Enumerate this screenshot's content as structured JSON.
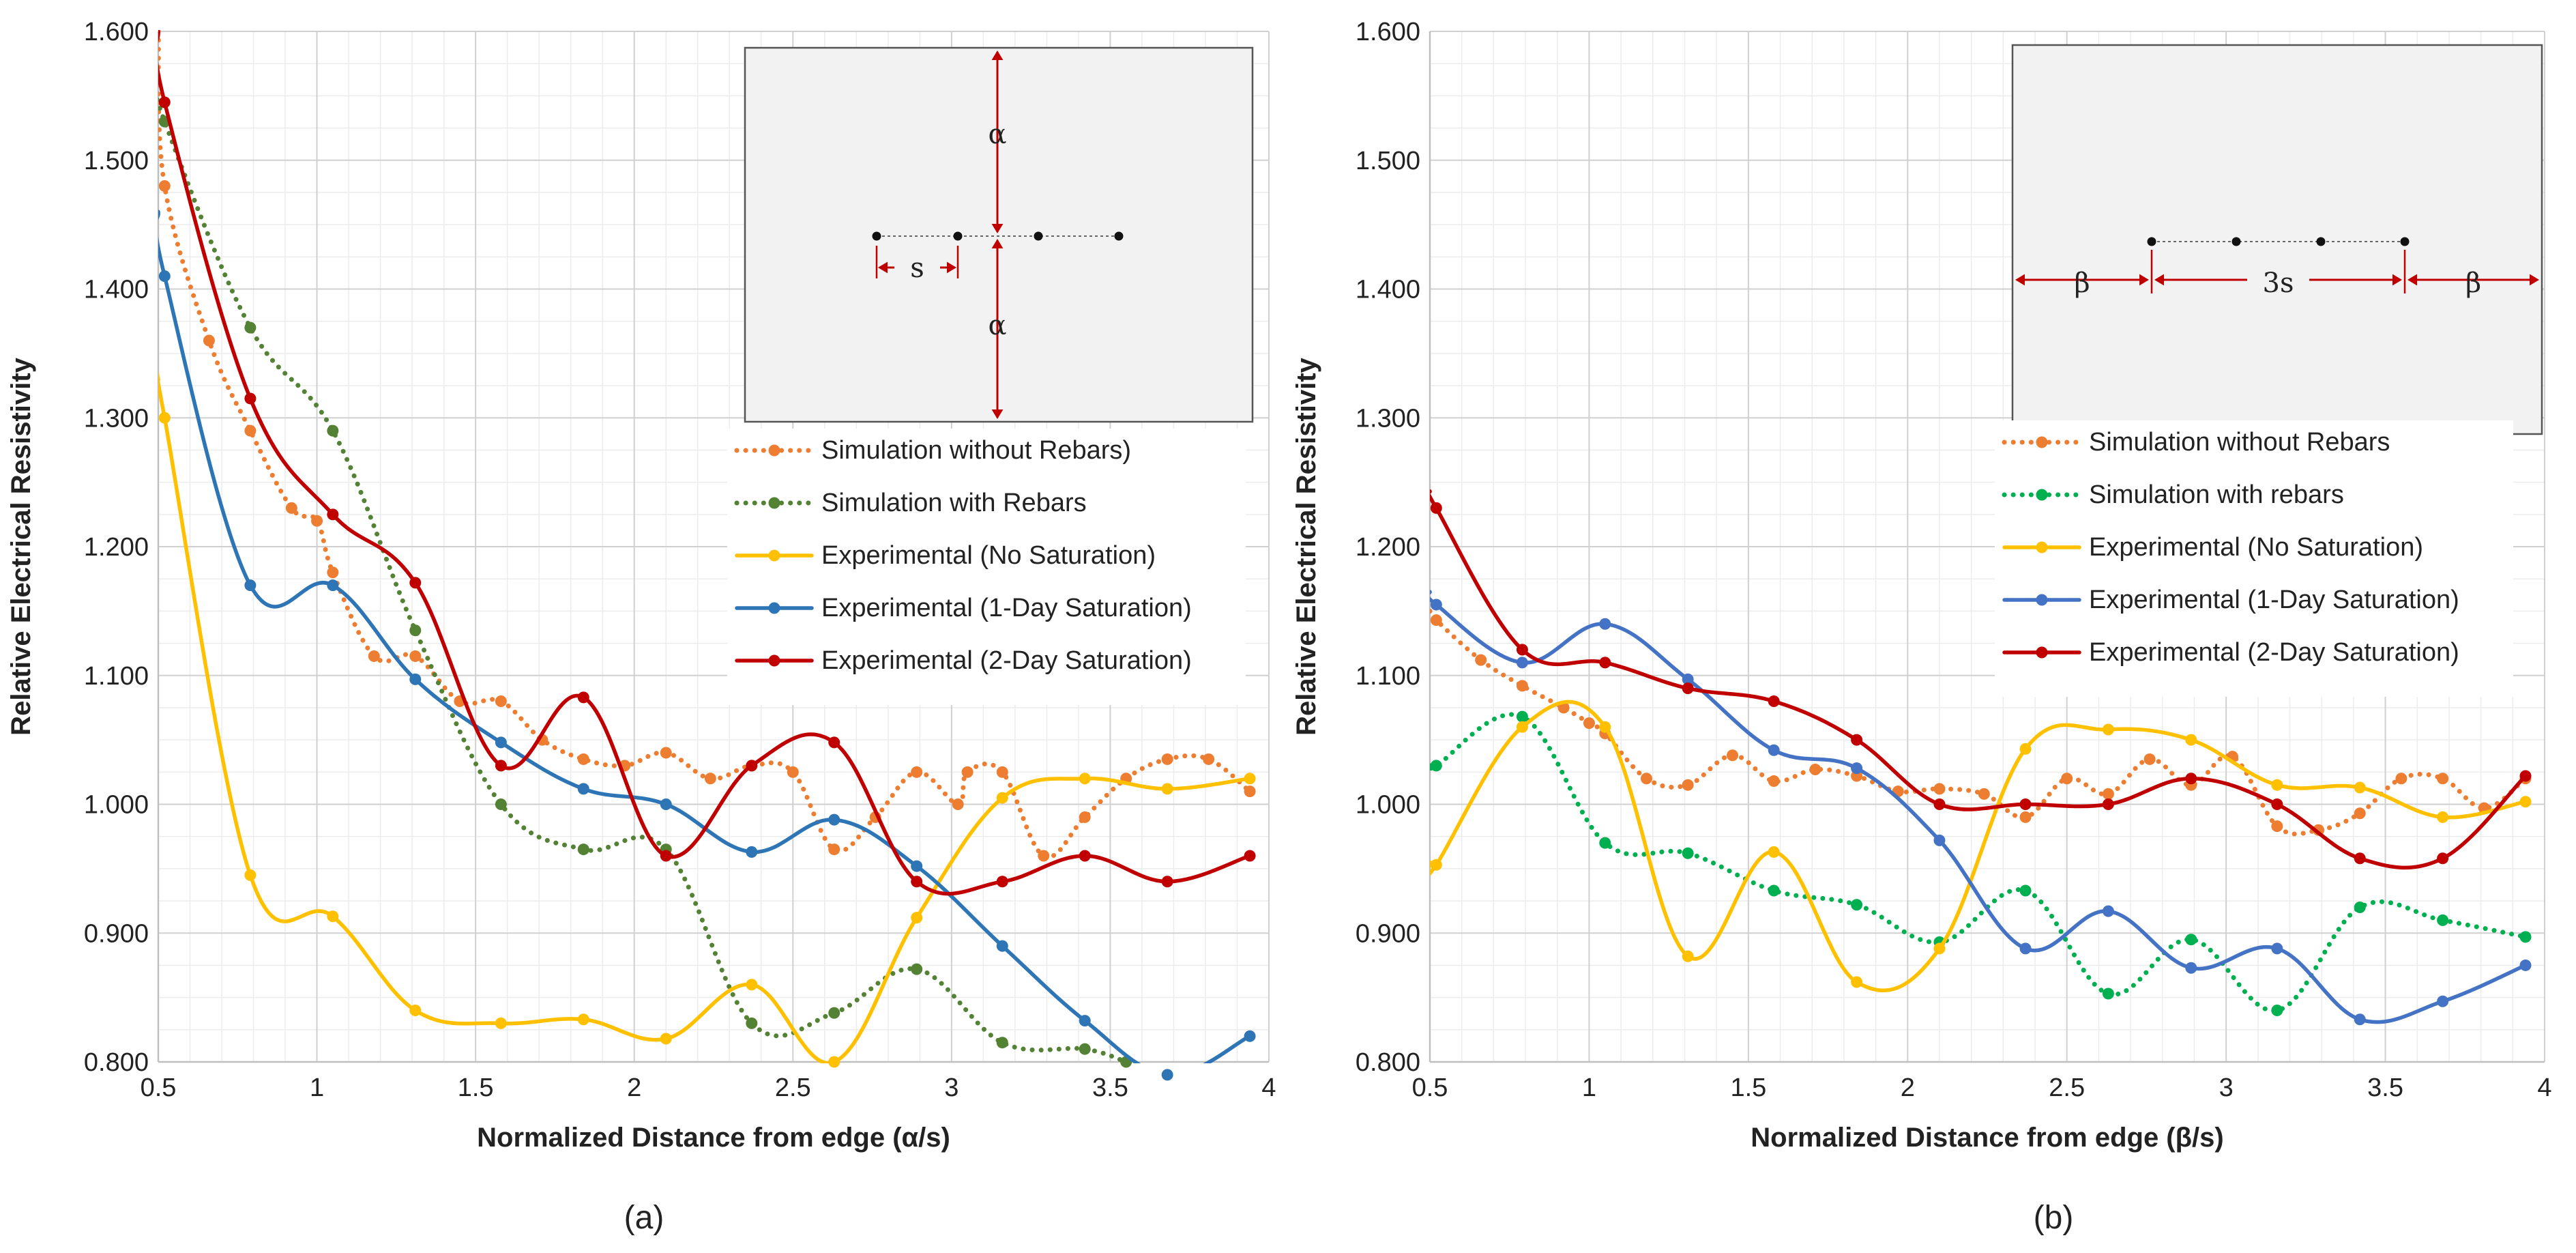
{
  "chart_data": [
    {
      "type": "line",
      "caption": "(a)",
      "xlabel": "Normalized Distance from edge (α/s)",
      "ylabel": "Relative Electrical Resistivity",
      "xlim": [
        0.5,
        4
      ],
      "ylim": [
        0.8,
        1.6
      ],
      "grid": true,
      "x_ticks": [
        "0.5",
        "1",
        "1.5",
        "2",
        "2.5",
        "3",
        "3.5",
        "4"
      ],
      "y_ticks": [
        "0.800",
        "0.900",
        "1.000",
        "1.100",
        "1.200",
        "1.300",
        "1.400",
        "1.500",
        "1.600"
      ],
      "legend_position": "right",
      "inset": {
        "labels": [
          "α",
          "s",
          "α"
        ],
        "points": 4
      },
      "series": [
        {
          "name": "Simulation without Rebars)",
          "color": "#ED7D31",
          "style": "dotted",
          "points": [
            [
              0.5,
              1.6
            ],
            [
              0.52,
              1.48
            ],
            [
              0.66,
              1.36
            ],
            [
              0.79,
              1.29
            ],
            [
              0.92,
              1.23
            ],
            [
              1.0,
              1.22
            ],
            [
              1.05,
              1.18
            ],
            [
              1.18,
              1.115
            ],
            [
              1.31,
              1.115
            ],
            [
              1.45,
              1.08
            ],
            [
              1.58,
              1.08
            ],
            [
              1.71,
              1.05
            ],
            [
              1.84,
              1.035
            ],
            [
              1.97,
              1.03
            ],
            [
              2.1,
              1.04
            ],
            [
              2.24,
              1.02
            ],
            [
              2.37,
              1.03
            ],
            [
              2.5,
              1.025
            ],
            [
              2.63,
              0.965
            ],
            [
              2.76,
              0.99
            ],
            [
              2.89,
              1.025
            ],
            [
              3.02,
              1.0
            ],
            [
              3.05,
              1.025
            ],
            [
              3.16,
              1.025
            ],
            [
              3.29,
              0.96
            ],
            [
              3.42,
              0.99
            ],
            [
              3.55,
              1.02
            ],
            [
              3.68,
              1.035
            ],
            [
              3.81,
              1.035
            ],
            [
              3.94,
              1.01
            ]
          ]
        },
        {
          "name": "Simulation with Rebars",
          "color": "#548235",
          "style": "dotted",
          "points": [
            [
              0.5,
              1.56
            ],
            [
              0.52,
              1.53
            ],
            [
              0.79,
              1.37
            ],
            [
              1.05,
              1.29
            ],
            [
              1.31,
              1.135
            ],
            [
              1.58,
              1.0
            ],
            [
              1.84,
              0.965
            ],
            [
              2.1,
              0.965
            ],
            [
              2.37,
              0.83
            ],
            [
              2.63,
              0.838
            ],
            [
              2.89,
              0.872
            ],
            [
              3.16,
              0.815
            ],
            [
              3.42,
              0.81
            ],
            [
              3.55,
              0.8
            ]
          ]
        },
        {
          "name": "Experimental (No Saturation)",
          "color": "#FFC000",
          "style": "solid",
          "points": [
            [
              0.5,
              1.33
            ],
            [
              0.52,
              1.3
            ],
            [
              0.79,
              0.945
            ],
            [
              1.05,
              0.913
            ],
            [
              1.31,
              0.84
            ],
            [
              1.58,
              0.83
            ],
            [
              1.84,
              0.833
            ],
            [
              2.1,
              0.818
            ],
            [
              2.37,
              0.86
            ],
            [
              2.63,
              0.8
            ],
            [
              2.89,
              0.912
            ],
            [
              3.16,
              1.005
            ],
            [
              3.42,
              1.02
            ],
            [
              3.68,
              1.012
            ],
            [
              3.94,
              1.02
            ]
          ]
        },
        {
          "name": "Experimental (1-Day Saturation)",
          "color": "#2E75B6",
          "style": "solid",
          "points": [
            [
              0.5,
              1.46
            ],
            [
              0.52,
              1.41
            ],
            [
              0.79,
              1.17
            ],
            [
              1.05,
              1.17
            ],
            [
              1.31,
              1.097
            ],
            [
              1.58,
              1.048
            ],
            [
              1.84,
              1.012
            ],
            [
              2.1,
              1.0
            ],
            [
              2.37,
              0.963
            ],
            [
              2.63,
              0.988
            ],
            [
              2.89,
              0.952
            ],
            [
              3.16,
              0.89
            ],
            [
              3.42,
              0.832
            ],
            [
              3.68,
              0.79
            ],
            [
              3.94,
              0.82
            ]
          ]
        },
        {
          "name": "Experimental (2-Day Saturation)",
          "color": "#C00000",
          "style": "solid",
          "points": [
            [
              0.5,
              1.6
            ],
            [
              0.52,
              1.545
            ],
            [
              0.79,
              1.315
            ],
            [
              1.05,
              1.225
            ],
            [
              1.31,
              1.172
            ],
            [
              1.58,
              1.03
            ],
            [
              1.84,
              1.083
            ],
            [
              2.1,
              0.96
            ],
            [
              2.37,
              1.03
            ],
            [
              2.63,
              1.048
            ],
            [
              2.89,
              0.94
            ],
            [
              3.16,
              0.94
            ],
            [
              3.42,
              0.96
            ],
            [
              3.68,
              0.94
            ],
            [
              3.94,
              0.96
            ]
          ]
        }
      ]
    },
    {
      "type": "line",
      "caption": "(b)",
      "xlabel": "Normalized Distance from edge (β/s)",
      "ylabel": "Relative Electrical Resistivity",
      "xlim": [
        0.5,
        4
      ],
      "ylim": [
        0.8,
        1.6
      ],
      "grid": true,
      "x_ticks": [
        "0.5",
        "1",
        "1.5",
        "2",
        "2.5",
        "3",
        "3.5",
        "4"
      ],
      "y_ticks": [
        "0.800",
        "0.900",
        "1.000",
        "1.100",
        "1.200",
        "1.300",
        "1.400",
        "1.500",
        "1.600"
      ],
      "legend_position": "right",
      "inset": {
        "labels": [
          "β",
          "3s",
          "β"
        ],
        "points": 4
      },
      "series": [
        {
          "name": "Simulation without Rebars",
          "color": "#ED7D31",
          "style": "dotted",
          "points": [
            [
              0.5,
              1.15
            ],
            [
              0.52,
              1.143
            ],
            [
              0.66,
              1.112
            ],
            [
              0.79,
              1.092
            ],
            [
              0.92,
              1.075
            ],
            [
              1.0,
              1.063
            ],
            [
              1.05,
              1.055
            ],
            [
              1.18,
              1.02
            ],
            [
              1.31,
              1.015
            ],
            [
              1.45,
              1.038
            ],
            [
              1.58,
              1.018
            ],
            [
              1.71,
              1.027
            ],
            [
              1.84,
              1.022
            ],
            [
              1.97,
              1.01
            ],
            [
              2.1,
              1.012
            ],
            [
              2.24,
              1.008
            ],
            [
              2.37,
              0.99
            ],
            [
              2.5,
              1.02
            ],
            [
              2.63,
              1.008
            ],
            [
              2.76,
              1.035
            ],
            [
              2.89,
              1.015
            ],
            [
              3.02,
              1.037
            ],
            [
              3.16,
              0.983
            ],
            [
              3.29,
              0.98
            ],
            [
              3.42,
              0.993
            ],
            [
              3.55,
              1.02
            ],
            [
              3.68,
              1.02
            ],
            [
              3.81,
              0.997
            ],
            [
              3.94,
              1.02
            ]
          ]
        },
        {
          "name": "Simulation with rebars",
          "color": "#00B050",
          "style": "dotted",
          "points": [
            [
              0.5,
              1.03
            ],
            [
              0.52,
              1.03
            ],
            [
              0.79,
              1.068
            ],
            [
              1.05,
              0.97
            ],
            [
              1.31,
              0.962
            ],
            [
              1.58,
              0.933
            ],
            [
              1.84,
              0.922
            ],
            [
              2.1,
              0.893
            ],
            [
              2.37,
              0.933
            ],
            [
              2.63,
              0.853
            ],
            [
              2.89,
              0.895
            ],
            [
              3.16,
              0.84
            ],
            [
              3.42,
              0.92
            ],
            [
              3.68,
              0.91
            ],
            [
              3.94,
              0.897
            ]
          ]
        },
        {
          "name": "Experimental (No Saturation)",
          "color": "#FFC000",
          "style": "solid",
          "points": [
            [
              0.5,
              0.955
            ],
            [
              0.52,
              0.953
            ],
            [
              0.79,
              1.06
            ],
            [
              1.05,
              1.06
            ],
            [
              1.31,
              0.882
            ],
            [
              1.58,
              0.963
            ],
            [
              1.84,
              0.862
            ],
            [
              2.1,
              0.888
            ],
            [
              2.37,
              1.043
            ],
            [
              2.63,
              1.058
            ],
            [
              2.89,
              1.05
            ],
            [
              3.16,
              1.015
            ],
            [
              3.42,
              1.013
            ],
            [
              3.68,
              0.99
            ],
            [
              3.94,
              1.002
            ]
          ]
        },
        {
          "name": "Experimental (1-Day Saturation)",
          "color": "#4472C4",
          "style": "solid",
          "points": [
            [
              0.5,
              1.165
            ],
            [
              0.52,
              1.155
            ],
            [
              0.79,
              1.11
            ],
            [
              1.05,
              1.14
            ],
            [
              1.31,
              1.097
            ],
            [
              1.58,
              1.042
            ],
            [
              1.84,
              1.028
            ],
            [
              2.1,
              0.972
            ],
            [
              2.37,
              0.888
            ],
            [
              2.63,
              0.917
            ],
            [
              2.89,
              0.873
            ],
            [
              3.16,
              0.888
            ],
            [
              3.42,
              0.833
            ],
            [
              3.68,
              0.847
            ],
            [
              3.94,
              0.875
            ]
          ]
        },
        {
          "name": "Experimental (2-Day Saturation)",
          "color": "#C00000",
          "style": "solid",
          "points": [
            [
              0.5,
              1.243
            ],
            [
              0.52,
              1.23
            ],
            [
              0.79,
              1.12
            ],
            [
              1.05,
              1.11
            ],
            [
              1.31,
              1.09
            ],
            [
              1.58,
              1.08
            ],
            [
              1.84,
              1.05
            ],
            [
              2.1,
              1.0
            ],
            [
              2.37,
              1.0
            ],
            [
              2.63,
              1.0
            ],
            [
              2.89,
              1.02
            ],
            [
              3.16,
              1.0
            ],
            [
              3.42,
              0.958
            ],
            [
              3.68,
              0.958
            ],
            [
              3.94,
              1.022
            ]
          ]
        }
      ]
    }
  ]
}
